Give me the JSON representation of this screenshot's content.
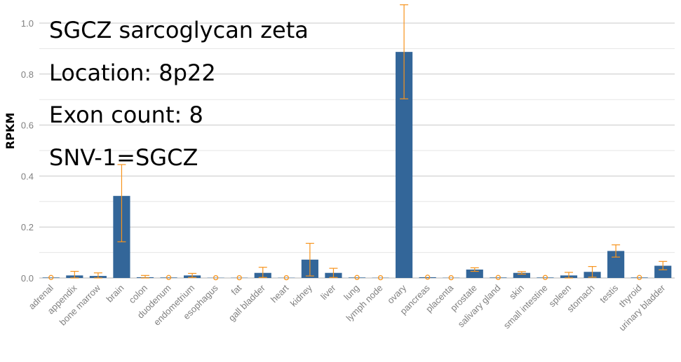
{
  "info": {
    "gene": "SGCZ sarcoglycan zeta",
    "location": "Location: 8p22",
    "exon_count": "Exon count: 8",
    "snv": "SNV-1=SGCZ"
  },
  "colors": {
    "bar": "#336699",
    "error": "#f7941d",
    "grid_major": "#c8c8c8",
    "grid_minor": "#e6e6e6",
    "tick_text": "#808080"
  },
  "chart_data": {
    "type": "bar",
    "ylabel": "RPKM",
    "xlabel": "",
    "ylim": [
      0,
      1.1
    ],
    "yticks": [
      0.0,
      0.2,
      0.4,
      0.6,
      0.8,
      1.0
    ],
    "ytick_labels": [
      "0.0",
      "0.2",
      "0.4",
      "0.6",
      "0.8",
      "1.0"
    ],
    "grid": true,
    "categories": [
      "adrenal",
      "appendix",
      "bone marrow",
      "brain",
      "colon",
      "duodenum",
      "endometrium",
      "esophagus",
      "fat",
      "gall bladder",
      "heart",
      "kidney",
      "liver",
      "lung",
      "lymph node",
      "ovary",
      "pancreas",
      "placenta",
      "prostate",
      "salivary gland",
      "skin",
      "small intestine",
      "spleen",
      "stomach",
      "testis",
      "thyroid",
      "urinary bladder"
    ],
    "values": [
      0.002,
      0.01,
      0.008,
      0.322,
      0.003,
      0.002,
      0.01,
      0.001,
      0.001,
      0.02,
      0.001,
      0.072,
      0.02,
      0.002,
      0.001,
      0.887,
      0.003,
      0.001,
      0.033,
      0.002,
      0.02,
      0.002,
      0.01,
      0.024,
      0.106,
      0.002,
      0.048
    ],
    "error_low": [
      0.0,
      0.0,
      0.0,
      0.142,
      0.0,
      0.0,
      0.002,
      0.0,
      0.0,
      0.002,
      0.0,
      0.008,
      0.002,
      0.0,
      0.0,
      0.703,
      0.0,
      0.0,
      0.026,
      0.0,
      0.015,
      0.0,
      0.0,
      0.003,
      0.082,
      0.0,
      0.032
    ],
    "error_high": [
      0.006,
      0.026,
      0.02,
      0.445,
      0.01,
      0.006,
      0.018,
      0.002,
      0.004,
      0.042,
      0.004,
      0.136,
      0.038,
      0.004,
      0.002,
      1.072,
      0.005,
      0.002,
      0.04,
      0.004,
      0.025,
      0.004,
      0.022,
      0.045,
      0.13,
      0.005,
      0.065
    ]
  }
}
